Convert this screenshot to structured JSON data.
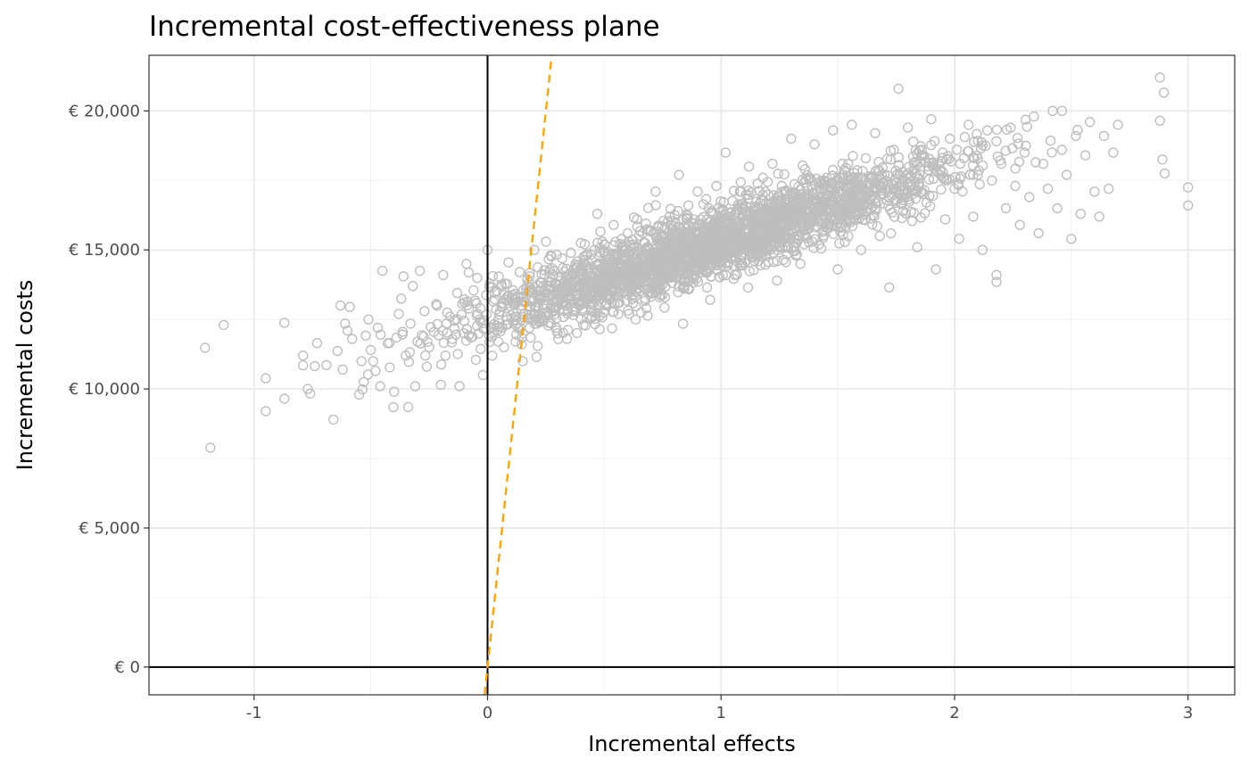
{
  "chart_data": {
    "type": "scatter",
    "title": "Incremental cost-effectiveness plane",
    "xlabel": "Incremental effects",
    "ylabel": "Incremental costs",
    "xlim": [
      -1.45,
      3.2
    ],
    "ylim": [
      -1000,
      22000
    ],
    "x_ticks": [
      -1,
      0,
      1,
      2,
      3
    ],
    "x_tick_labels": [
      "-1",
      "0",
      "1",
      "2",
      "3"
    ],
    "y_ticks": [
      0,
      5000,
      10000,
      15000,
      20000
    ],
    "y_tick_labels": [
      "€ 0",
      "€ 5,000",
      "€ 10,000",
      "€ 15,000",
      "€ 20,000"
    ],
    "grid": true,
    "reference_lines": {
      "x": 0,
      "y": 0,
      "color": "#000000"
    },
    "threshold_line": {
      "slope": 80000,
      "intercept": 0,
      "style": "dashed",
      "color": "#FFA500"
    },
    "point_color": "#BEBEBE",
    "points": [
      [
        -1.21,
        11480
      ],
      [
        -1.13,
        12300
      ],
      [
        -0.95,
        10380
      ],
      [
        -0.95,
        9200
      ],
      [
        -0.87,
        9650
      ],
      [
        -0.87,
        12380
      ],
      [
        -0.79,
        11200
      ],
      [
        -0.79,
        10850
      ],
      [
        -0.77,
        10000
      ],
      [
        -0.76,
        9830
      ],
      [
        -0.74,
        10820
      ],
      [
        -0.73,
        11650
      ],
      [
        -0.69,
        10860
      ],
      [
        -0.66,
        8900
      ],
      [
        -0.63,
        13000
      ],
      [
        -0.62,
        10700
      ],
      [
        -0.61,
        12350
      ],
      [
        -0.6,
        12100
      ],
      [
        -0.59,
        12950
      ],
      [
        -0.58,
        11800
      ],
      [
        -0.55,
        9800
      ],
      [
        -0.54,
        11000
      ],
      [
        -0.53,
        10250
      ],
      [
        -0.51,
        12500
      ],
      [
        -0.5,
        11400
      ],
      [
        -0.49,
        11000
      ],
      [
        -0.48,
        10650
      ],
      [
        -0.47,
        12200
      ],
      [
        -0.46,
        10100
      ],
      [
        -0.45,
        14250
      ],
      [
        -0.42,
        11650
      ],
      [
        -0.4,
        9900
      ],
      [
        -0.39,
        11850
      ],
      [
        -0.38,
        12700
      ],
      [
        -0.37,
        13250
      ],
      [
        -0.36,
        14050
      ],
      [
        -0.35,
        11200
      ],
      [
        -0.34,
        9350
      ],
      [
        -0.33,
        12350
      ],
      [
        -0.32,
        13700
      ],
      [
        -0.31,
        10100
      ],
      [
        -0.3,
        11700
      ],
      [
        -0.29,
        14250
      ],
      [
        -0.27,
        12800
      ],
      [
        -0.26,
        10800
      ],
      [
        -0.25,
        11500
      ],
      [
        -0.23,
        12050
      ],
      [
        -0.22,
        13050
      ],
      [
        -0.2,
        10150
      ],
      [
        -0.19,
        14100
      ],
      [
        -0.18,
        11200
      ],
      [
        -0.16,
        12600
      ],
      [
        -0.15,
        11800
      ],
      [
        -0.13,
        13450
      ],
      [
        -0.12,
        10100
      ],
      [
        -0.1,
        12450
      ],
      [
        -0.09,
        14500
      ],
      [
        -0.07,
        11850
      ],
      [
        -0.06,
        13550
      ],
      [
        -0.05,
        11050
      ],
      [
        -0.03,
        12900
      ],
      [
        -0.02,
        10500
      ],
      [
        0,
        15000
      ],
      [
        0.02,
        11200
      ],
      [
        0.04,
        12100
      ],
      [
        0.06,
        13750
      ],
      [
        0.07,
        11500
      ],
      [
        0.09,
        14550
      ],
      [
        0.1,
        12650
      ],
      [
        0.12,
        11700
      ],
      [
        0.14,
        13300
      ],
      [
        0.15,
        11000
      ],
      [
        0.17,
        13950
      ],
      [
        0.18,
        12200
      ],
      [
        0.2,
        15000
      ],
      [
        0.21,
        11150
      ],
      [
        0.23,
        13250
      ],
      [
        0.24,
        12450
      ],
      [
        0.25,
        15300
      ],
      [
        0.27,
        12900
      ],
      [
        0.28,
        14100
      ],
      [
        0.3,
        12000
      ],
      [
        0.32,
        14700
      ],
      [
        0.34,
        11800
      ],
      [
        0.36,
        14050
      ],
      [
        0.38,
        12850
      ],
      [
        0.4,
        15250
      ],
      [
        0.41,
        12300
      ],
      [
        0.43,
        14550
      ],
      [
        0.45,
        13400
      ],
      [
        0.47,
        16300
      ],
      [
        0.48,
        12150
      ],
      [
        0.5,
        15200
      ],
      [
        0.52,
        13900
      ],
      [
        0.54,
        15900
      ],
      [
        0.56,
        12700
      ],
      [
        0.58,
        14650
      ],
      [
        0.6,
        15600
      ],
      [
        0.62,
        13250
      ],
      [
        0.64,
        16100
      ],
      [
        0.66,
        14300
      ],
      [
        0.68,
        12900
      ],
      [
        0.7,
        15700
      ],
      [
        0.72,
        17100
      ],
      [
        0.74,
        14600
      ],
      [
        0.76,
        13300
      ],
      [
        0.78,
        16200
      ],
      [
        0.8,
        15100
      ],
      [
        0.82,
        17700
      ],
      [
        0.84,
        13900
      ],
      [
        0.86,
        16600
      ],
      [
        0.88,
        14700
      ],
      [
        0.9,
        17100
      ],
      [
        0.92,
        15500
      ],
      [
        0.94,
        13650
      ],
      [
        0.96,
        16400
      ],
      [
        0.98,
        17300
      ],
      [
        1,
        15100
      ],
      [
        1.02,
        18500
      ],
      [
        1.04,
        16200
      ],
      [
        1.06,
        14100
      ],
      [
        1.08,
        17100
      ],
      [
        1.1,
        15300
      ],
      [
        1.12,
        18000
      ],
      [
        1.14,
        16400
      ],
      [
        1.16,
        14600
      ],
      [
        1.18,
        17600
      ],
      [
        1.2,
        15900
      ],
      [
        1.22,
        18100
      ],
      [
        1.24,
        13900
      ],
      [
        1.26,
        17300
      ],
      [
        1.28,
        15500
      ],
      [
        1.3,
        19000
      ],
      [
        1.32,
        16700
      ],
      [
        1.34,
        14500
      ],
      [
        1.36,
        17900
      ],
      [
        1.38,
        16100
      ],
      [
        1.4,
        18800
      ],
      [
        1.42,
        15200
      ],
      [
        1.44,
        17500
      ],
      [
        1.46,
        16400
      ],
      [
        1.48,
        19300
      ],
      [
        1.5,
        14300
      ],
      [
        1.52,
        18100
      ],
      [
        1.54,
        16000
      ],
      [
        1.56,
        19500
      ],
      [
        1.58,
        17100
      ],
      [
        1.6,
        15000
      ],
      [
        1.62,
        18300
      ],
      [
        1.64,
        16800
      ],
      [
        1.66,
        19200
      ],
      [
        1.68,
        15500
      ],
      [
        1.7,
        17700
      ],
      [
        1.72,
        13650
      ],
      [
        1.74,
        18600
      ],
      [
        1.76,
        20800
      ],
      [
        1.78,
        16400
      ],
      [
        1.8,
        19400
      ],
      [
        1.82,
        17300
      ],
      [
        1.84,
        15100
      ],
      [
        1.86,
        18600
      ],
      [
        1.88,
        16700
      ],
      [
        1.9,
        19700
      ],
      [
        1.92,
        14300
      ],
      [
        1.94,
        17900
      ],
      [
        1.96,
        16100
      ],
      [
        1.98,
        19000
      ],
      [
        2,
        17200
      ],
      [
        2.02,
        15400
      ],
      [
        2.04,
        18300
      ],
      [
        2.06,
        19500
      ],
      [
        2.08,
        16200
      ],
      [
        2.1,
        17700
      ],
      [
        2.12,
        15000
      ],
      [
        2.14,
        19300
      ],
      [
        2.16,
        17500
      ],
      [
        2.18,
        14100
      ],
      [
        2.18,
        13850
      ],
      [
        2.2,
        18100
      ],
      [
        2.22,
        16500
      ],
      [
        2.24,
        19400
      ],
      [
        2.26,
        17300
      ],
      [
        2.28,
        15900
      ],
      [
        2.3,
        18500
      ],
      [
        2.32,
        16900
      ],
      [
        2.34,
        19800
      ],
      [
        2.36,
        15600
      ],
      [
        2.38,
        18100
      ],
      [
        2.4,
        17200
      ],
      [
        2.42,
        20000
      ],
      [
        2.44,
        16500
      ],
      [
        2.46,
        18600
      ],
      [
        2.48,
        17700
      ],
      [
        2.5,
        15400
      ],
      [
        2.52,
        19100
      ],
      [
        2.54,
        16300
      ],
      [
        2.56,
        18400
      ],
      [
        2.58,
        19600
      ],
      [
        2.6,
        17100
      ],
      [
        2.62,
        16200
      ],
      [
        2.64,
        19100
      ],
      [
        2.66,
        17200
      ],
      [
        2.68,
        18500
      ],
      [
        2.7,
        19500
      ],
      [
        2.88,
        21200
      ],
      [
        2.88,
        19650
      ],
      [
        2.89,
        18250
      ],
      [
        2.9,
        17750
      ],
      [
        3,
        17250
      ],
      [
        3,
        16600
      ]
    ]
  }
}
